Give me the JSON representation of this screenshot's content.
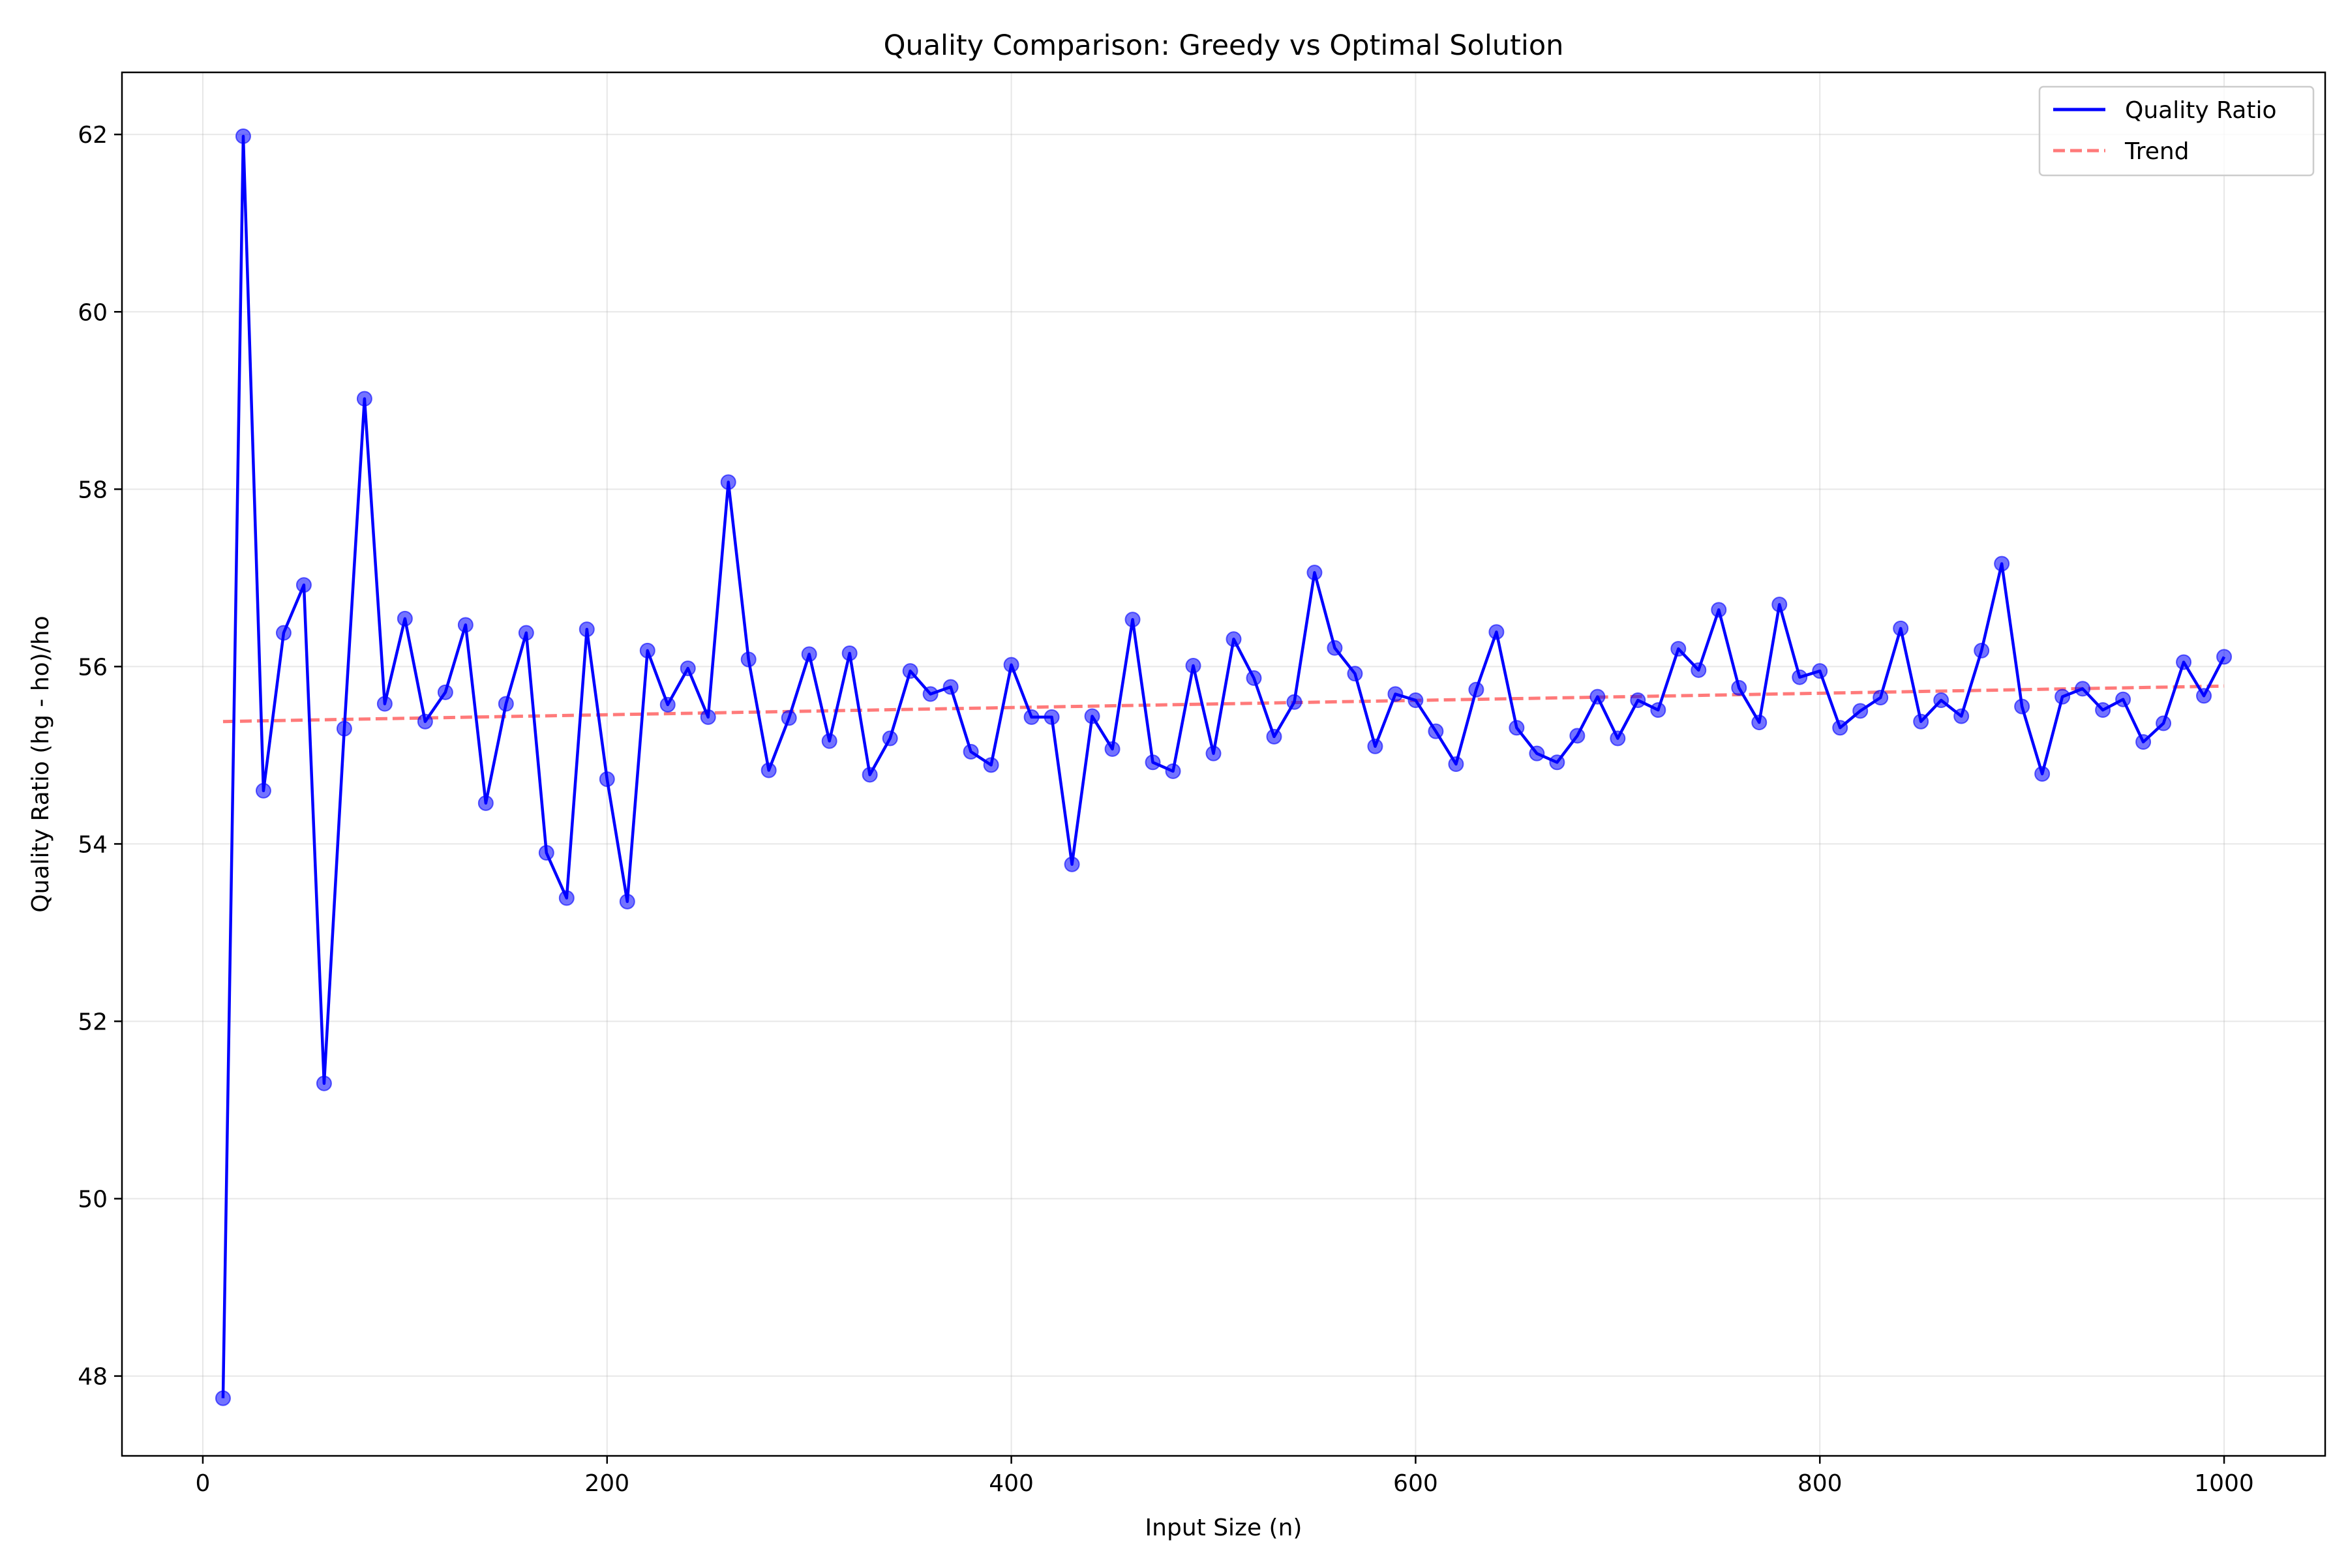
{
  "chart_data": {
    "type": "line",
    "title": "Quality Comparison: Greedy vs Optimal Solution",
    "xlabel": "Input Size (n)",
    "ylabel": "Quality Ratio (hg - ho)/ho",
    "xlim": [
      -40,
      1050
    ],
    "ylim": [
      47.1,
      62.7
    ],
    "xticks": [
      0,
      200,
      400,
      600,
      800,
      1000
    ],
    "yticks": [
      48,
      50,
      52,
      54,
      56,
      58,
      60,
      62
    ],
    "grid": true,
    "legend_position": "top-right",
    "series": [
      {
        "name": "Quality Ratio",
        "style": "solid line with markers",
        "color": "#0000ff",
        "marker_color": "#5a5aff",
        "x": [
          10,
          20,
          30,
          40,
          50,
          60,
          70,
          80,
          90,
          100,
          110,
          120,
          130,
          140,
          150,
          160,
          170,
          180,
          190,
          200,
          210,
          220,
          230,
          240,
          250,
          260,
          270,
          280,
          290,
          300,
          310,
          320,
          330,
          340,
          350,
          360,
          370,
          380,
          390,
          400,
          410,
          420,
          430,
          440,
          450,
          460,
          470,
          480,
          490,
          500,
          510,
          520,
          530,
          540,
          550,
          560,
          570,
          580,
          590,
          600,
          610,
          620,
          630,
          640,
          650,
          660,
          670,
          680,
          690,
          700,
          710,
          720,
          730,
          740,
          750,
          760,
          770,
          780,
          790,
          800,
          810,
          820,
          830,
          840,
          850,
          860,
          870,
          880,
          890,
          900,
          910,
          920,
          930,
          940,
          950,
          960,
          970,
          980,
          990,
          1000
        ],
        "values": [
          47.75,
          61.98,
          54.6,
          56.38,
          56.92,
          51.3,
          55.3,
          59.02,
          55.58,
          56.54,
          55.38,
          55.71,
          56.47,
          54.46,
          55.58,
          56.38,
          53.9,
          53.39,
          56.42,
          54.73,
          53.35,
          56.18,
          55.57,
          55.98,
          55.43,
          58.08,
          56.08,
          54.83,
          55.42,
          56.14,
          55.16,
          56.15,
          54.78,
          55.19,
          55.95,
          55.69,
          55.77,
          55.04,
          54.89,
          56.02,
          55.43,
          55.43,
          53.77,
          55.44,
          55.07,
          56.53,
          54.92,
          54.82,
          56.01,
          55.02,
          56.31,
          55.87,
          55.21,
          55.6,
          57.06,
          56.21,
          55.92,
          55.1,
          55.69,
          55.62,
          55.27,
          54.9,
          55.74,
          56.39,
          55.31,
          55.02,
          54.92,
          55.22,
          55.66,
          55.19,
          55.62,
          55.51,
          56.2,
          55.96,
          56.64,
          55.76,
          55.37,
          56.7,
          55.88,
          55.95,
          55.31,
          55.5,
          55.65,
          56.43,
          55.38,
          55.62,
          55.44,
          56.18,
          57.16,
          55.55,
          54.79,
          55.66,
          55.75,
          55.51,
          55.63,
          55.15,
          55.36,
          56.05,
          55.67,
          56.11
        ]
      },
      {
        "name": "Trend",
        "style": "dashed line",
        "color": "#ff6b6b",
        "x": [
          10,
          1000
        ],
        "values": [
          55.38,
          55.78
        ]
      }
    ]
  }
}
